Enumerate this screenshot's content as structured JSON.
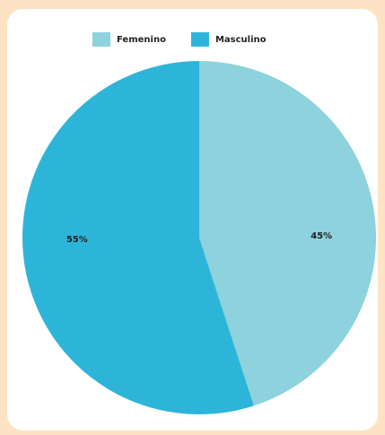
{
  "chart_data": {
    "type": "pie",
    "categories": [
      "Femenino",
      "Masculino"
    ],
    "values": [
      45,
      55
    ],
    "value_labels": [
      "45%",
      "55%"
    ],
    "colors": [
      "#8dd2dc",
      "#2db5d9"
    ],
    "legend": "top"
  }
}
